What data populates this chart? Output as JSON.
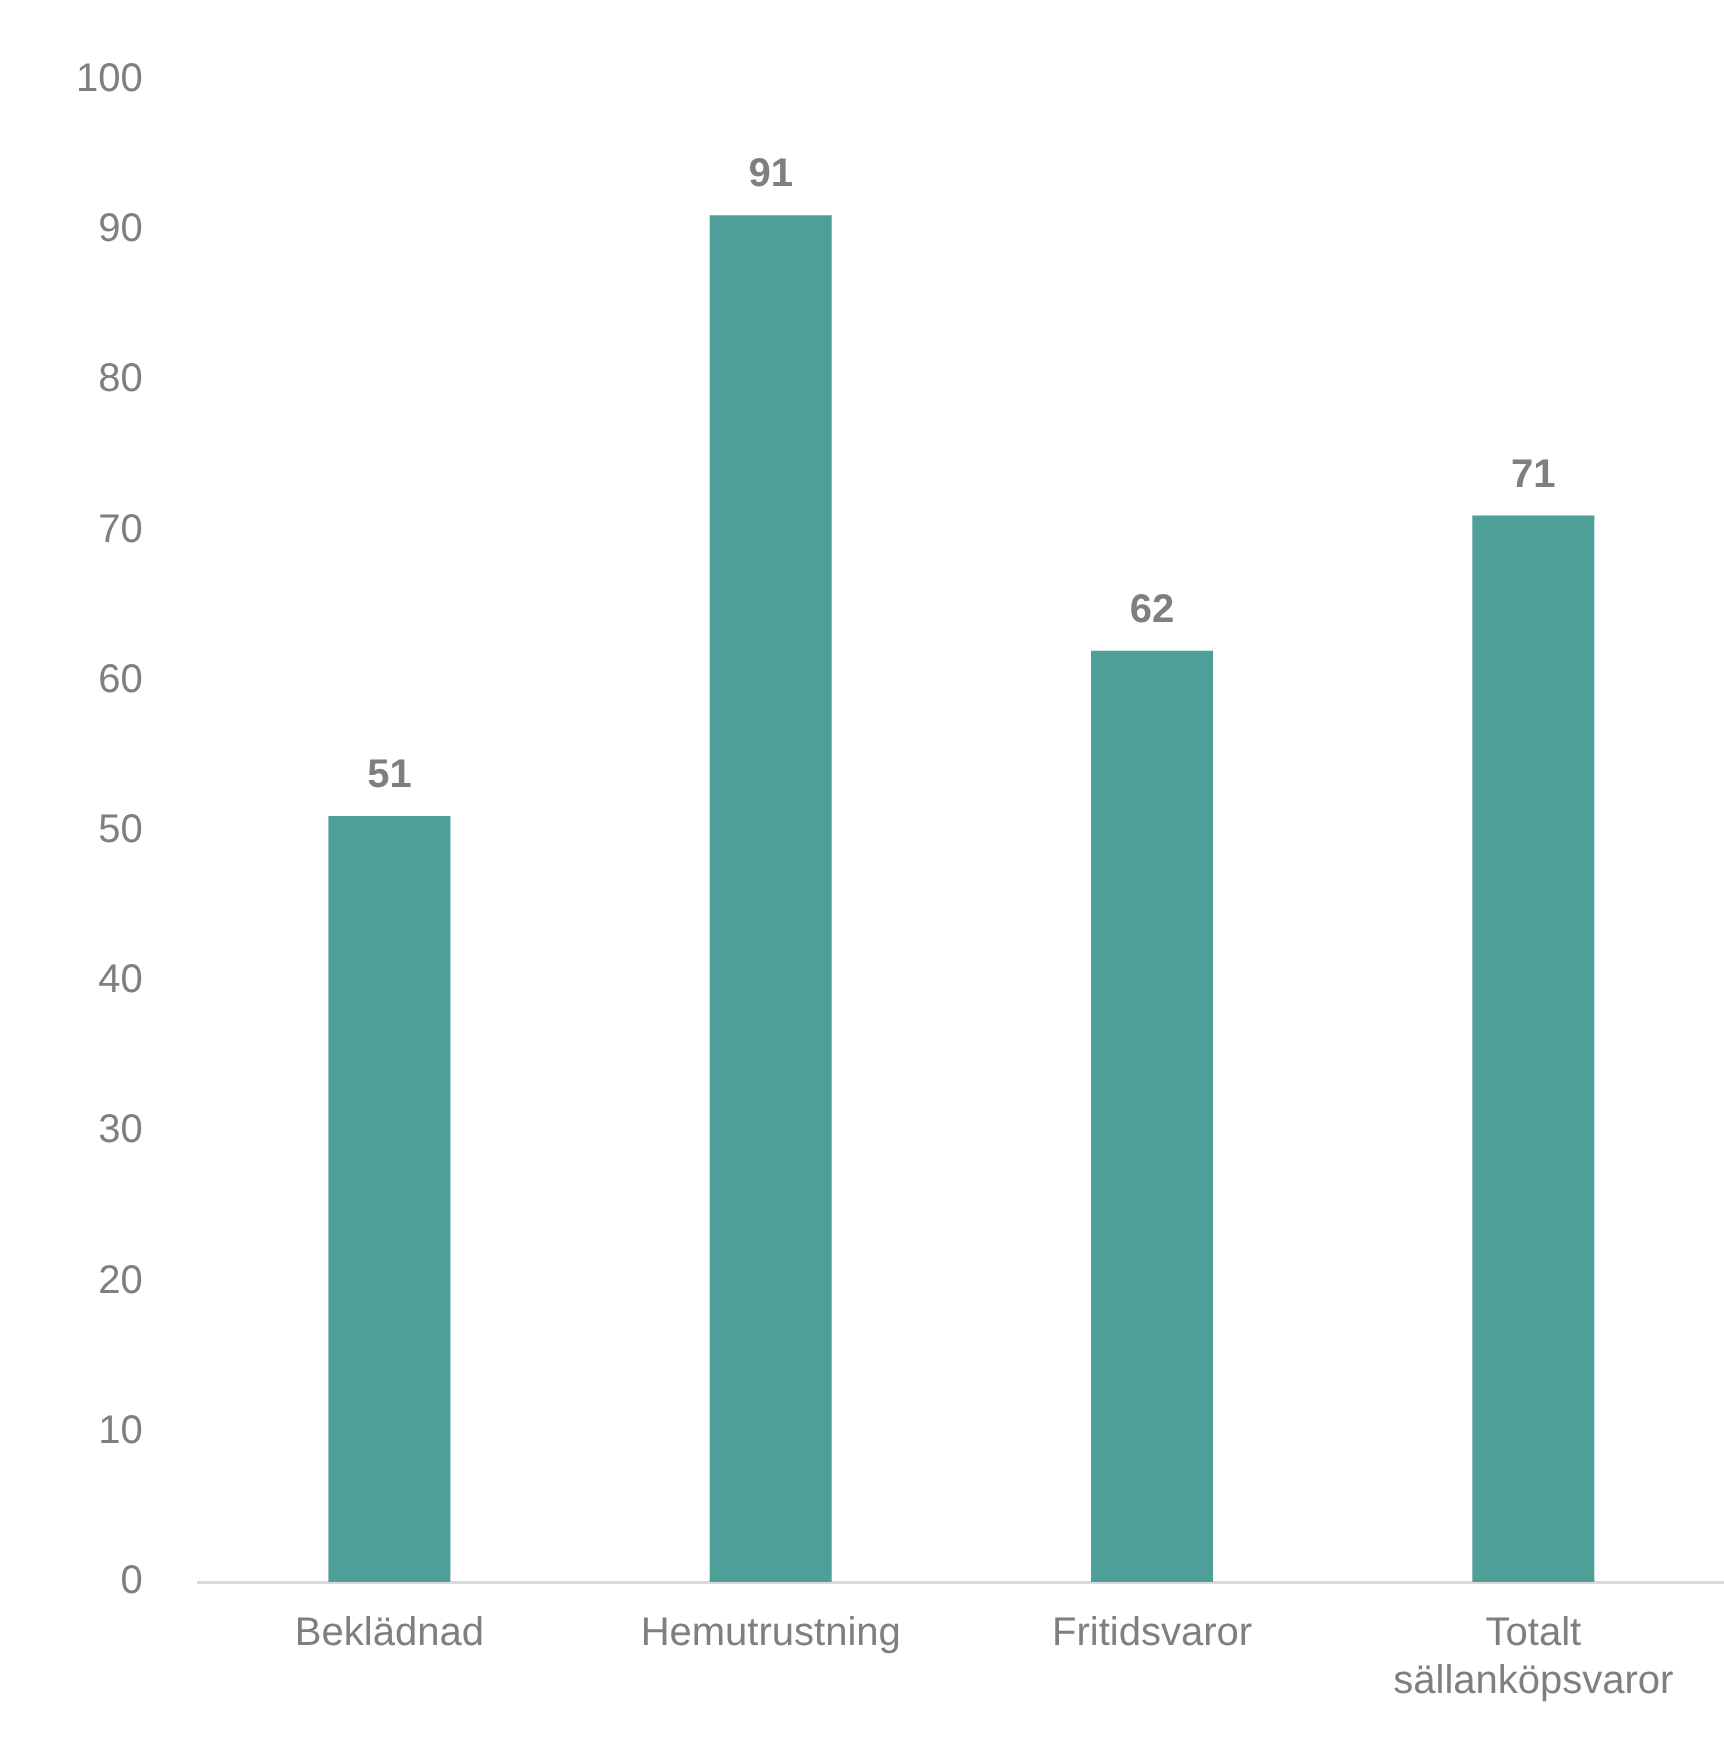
{
  "chart_data": {
    "type": "bar",
    "categories": [
      "Beklädnad",
      "Hemutrustning",
      "Fritidsvaror",
      "Totalt sällanköpsvaror"
    ],
    "values": [
      51,
      91,
      62,
      71
    ],
    "color": "#4e9f97",
    "ylim": [
      0,
      100
    ],
    "yticks": [
      0,
      10,
      20,
      30,
      40,
      50,
      60,
      70,
      80,
      90,
      100
    ],
    "grid": false,
    "legend": false,
    "data_labels": true
  }
}
